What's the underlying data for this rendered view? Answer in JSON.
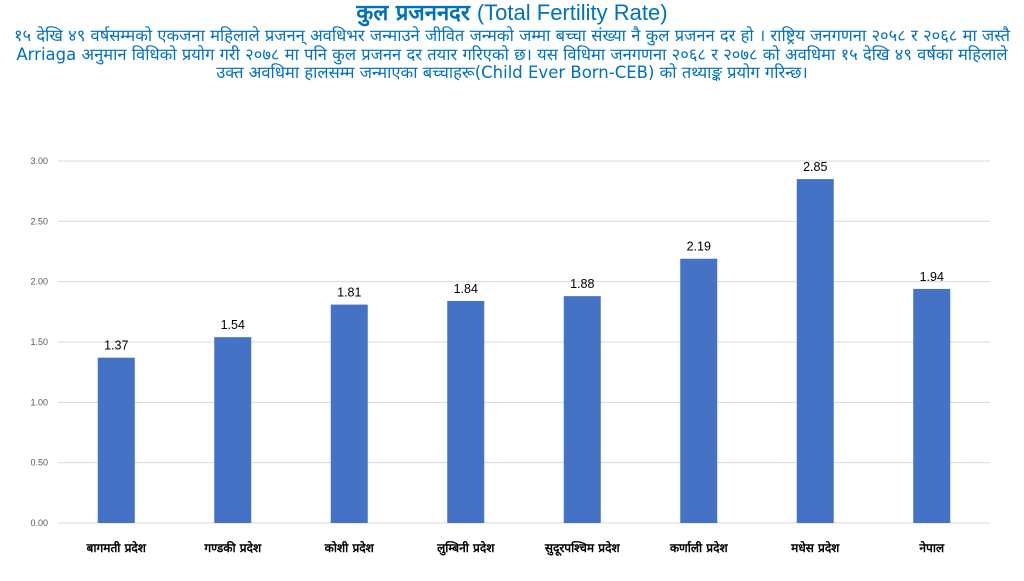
{
  "header": {
    "title_np": "कुल प्रजननदर",
    "title_en": "(Total Fertility Rate)",
    "description": "१५ देखि ४९ वर्षसम्मको एकजना महिलाले प्रजनन् अवधिभर जन्माउने जीवित जन्मको जम्मा बच्चा संख्या नै कुल प्रजनन दर हो । राष्ट्रिय जनगणना २०५८ र २०६८ मा जस्तै Arriaga  अनुमान विधिको प्रयोग गरी २०७८ मा पनि कुल प्रजनन दर तयार गरिएको छ। यस विधिमा जनगणना २०६८ र २०७८ को अवधिमा १५ देखि ४९ वर्षका महिलाले उक्त अवधिमा हालसम्म जन्माएका बच्चाहरू(Child Ever Born-CEB) को तथ्याङ्क प्रयोग गरिन्छ।"
  },
  "chart_data": {
    "type": "bar",
    "categories": [
      "बागमती प्रदेश",
      "गण्डकी प्रदेश",
      "कोशी प्रदेश",
      "लुम्बिनी प्रदेश",
      "सुदूरपश्चिम प्रदेश",
      "कर्णाली प्रदेश",
      "मधेस प्रदेश",
      "नेपाल"
    ],
    "values": [
      1.37,
      1.54,
      1.81,
      1.84,
      1.88,
      2.19,
      2.85,
      1.94
    ],
    "value_labels": [
      "1.37",
      "1.54",
      "1.81",
      "1.84",
      "1.88",
      "2.19",
      "2.85",
      "1.94"
    ],
    "ylim": [
      0,
      3
    ],
    "yticks": [
      "0.00",
      "0.50",
      "1.00",
      "1.50",
      "2.00",
      "2.50",
      "3.00"
    ],
    "grid": true,
    "bar_color": "#4472C4",
    "grid_color": "#D9D9D9"
  },
  "colors": {
    "title": "#0070C0"
  }
}
